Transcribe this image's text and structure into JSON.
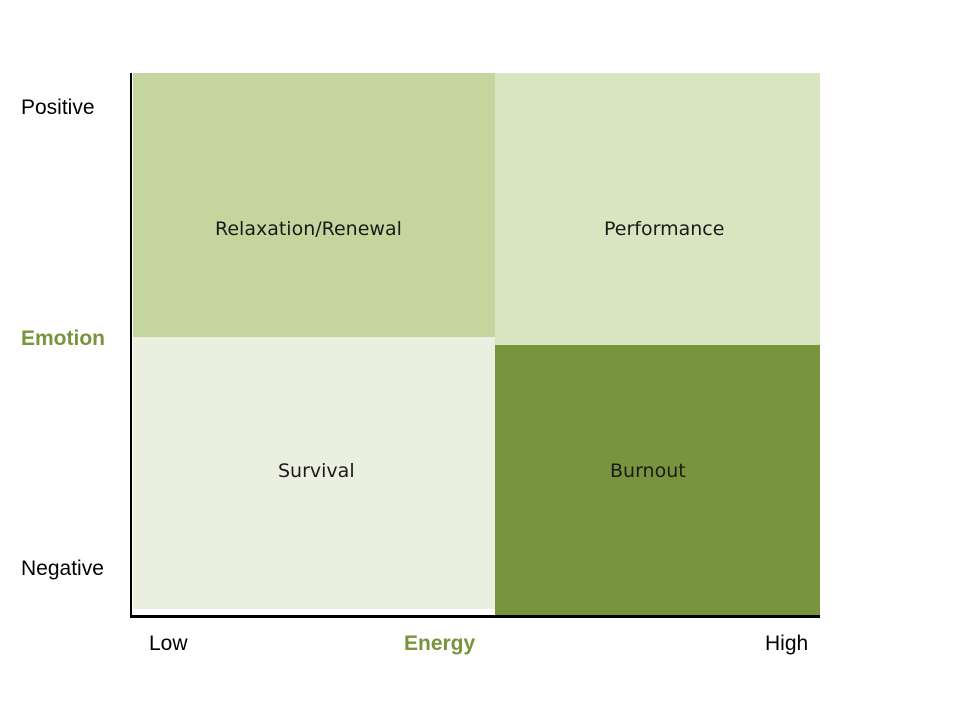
{
  "quadrants": {
    "top_left": {
      "label": "Relaxation/Renewal",
      "color": "#c4d69d"
    },
    "top_right": {
      "label": "Performance",
      "color": "#d9e4c0"
    },
    "bottom_left": {
      "label": "Survival",
      "color": "#ebefdf"
    },
    "bottom_right": {
      "label": "Burnout",
      "color": "#78943d"
    }
  },
  "y_axis": {
    "title": "Emotion",
    "high_label": "Positive",
    "low_label": "Negative"
  },
  "x_axis": {
    "title": "Energy",
    "low_label": "Low",
    "high_label": "High"
  },
  "colors": {
    "axis_title": "#78943d",
    "axis_line": "#000000"
  }
}
